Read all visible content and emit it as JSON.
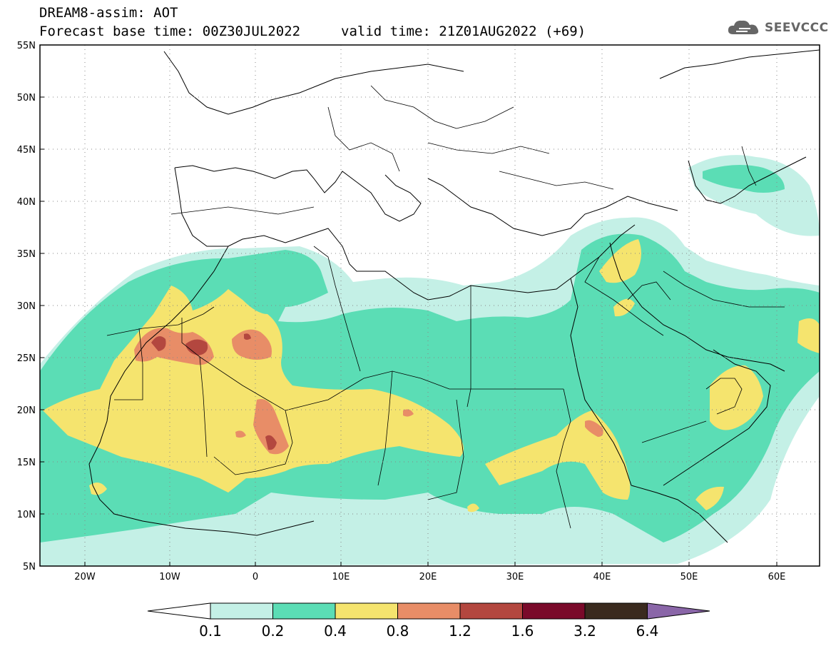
{
  "header": {
    "model_title": "DREAM8-assim: AOT",
    "base_time": "Forecast base time: 00Z30JUL2022",
    "valid_time": "valid time: 21Z01AUG2022 (+69)"
  },
  "logo": {
    "text": "SEEVCCC",
    "icon": "cloud-icon"
  },
  "map": {
    "lat_labels": [
      "55N",
      "50N",
      "45N",
      "40N",
      "35N",
      "30N",
      "25N",
      "20N",
      "15N",
      "10N",
      "5N"
    ],
    "lon_labels": [
      "20W",
      "10W",
      "0",
      "10E",
      "20E",
      "30E",
      "40E",
      "50E",
      "60E"
    ],
    "lat_range": [
      5,
      55
    ],
    "lon_range": [
      -25,
      65
    ],
    "grid": true,
    "colors": {
      "very_light": "#c4f0e6",
      "teal": "#5bddb5",
      "yellow": "#f5e46e",
      "orange": "#e88d67",
      "red": "#b3473f",
      "coast": "#000000"
    }
  },
  "colorbar": {
    "labels": [
      "0.1",
      "0.2",
      "0.4",
      "0.8",
      "1.2",
      "1.6",
      "3.2",
      "6.4"
    ],
    "colors": [
      "#ffffff",
      "#c4f0e6",
      "#5bddb5",
      "#f5e46e",
      "#e88d67",
      "#b3473f",
      "#7a0a2a",
      "#3a2a1e",
      "#8a66a8"
    ]
  }
}
